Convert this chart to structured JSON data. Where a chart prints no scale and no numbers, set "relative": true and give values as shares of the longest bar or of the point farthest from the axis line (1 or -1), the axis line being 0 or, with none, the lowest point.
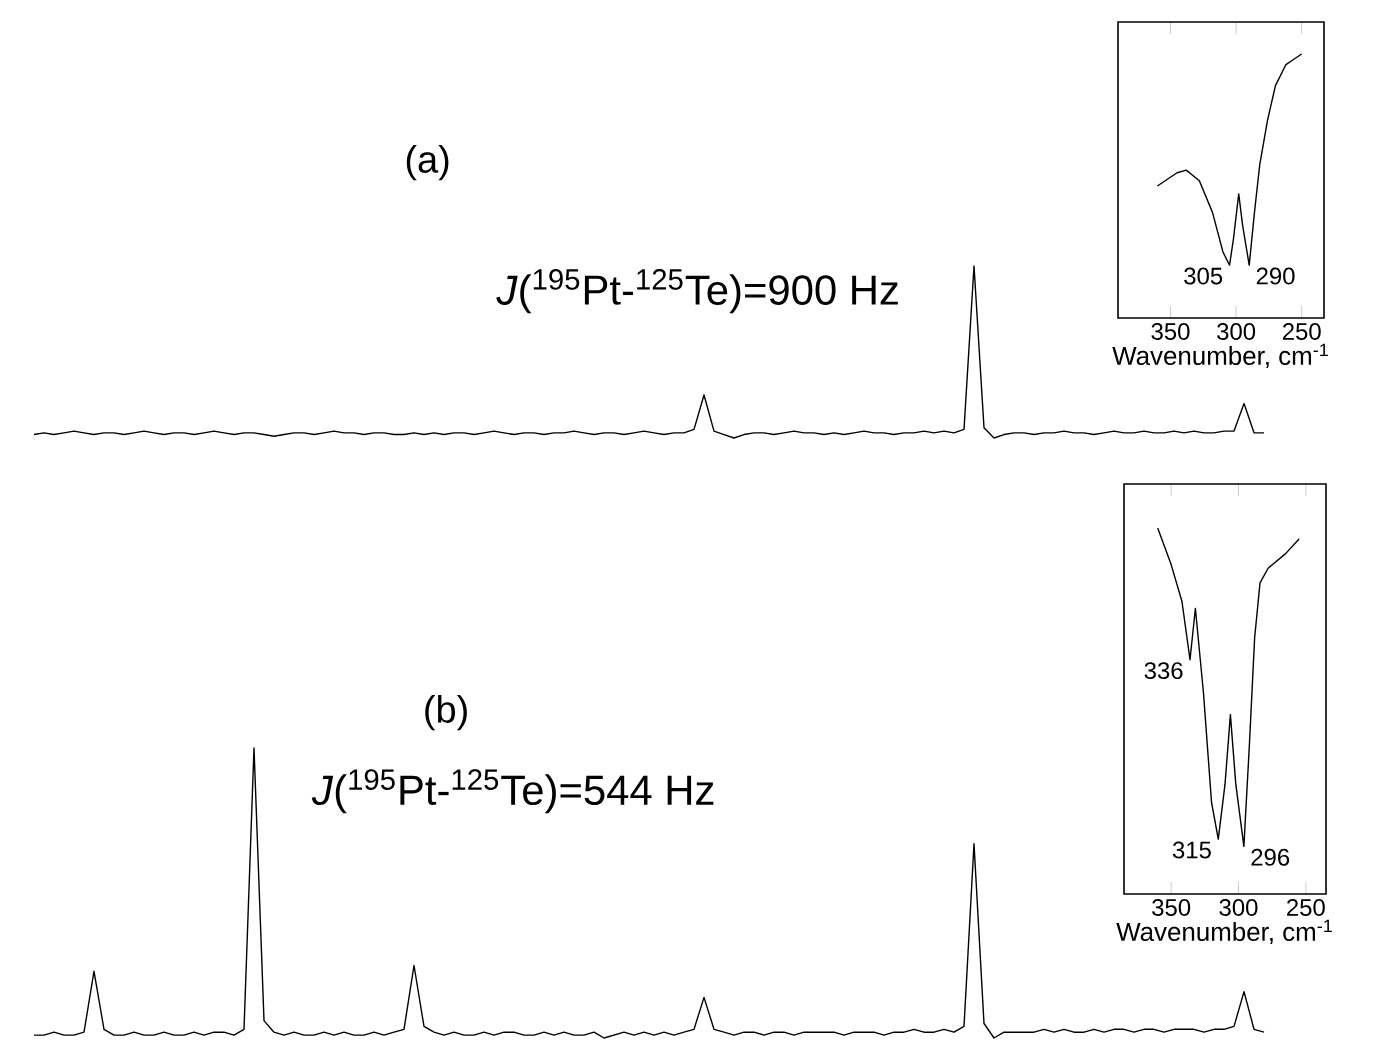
{
  "chart_data": [
    {
      "type": "line",
      "title": "(a)",
      "relative": true,
      "color": "#000000",
      "annotations": [
        "*J*($^{195}$Pt-$^{125}$Te)=900 Hz"
      ],
      "categories": [
        null,
        null,
        null,
        null,
        null,
        null,
        null,
        null,
        null,
        null,
        null,
        null,
        null,
        null,
        null,
        null,
        null,
        null,
        null,
        null,
        null,
        null,
        null,
        null,
        null,
        null,
        null,
        null,
        null,
        null,
        null,
        null,
        null,
        null,
        null,
        null,
        null,
        null,
        null,
        null,
        null,
        null,
        null,
        null,
        null,
        null,
        null,
        null,
        null,
        null,
        null,
        null,
        null,
        null,
        null,
        null,
        null,
        null,
        null,
        null,
        null,
        null,
        null,
        null,
        null,
        null,
        null,
        null,
        null,
        null,
        null,
        null,
        null,
        null,
        null,
        null,
        null,
        null,
        null,
        null,
        null,
        null,
        null,
        null,
        null,
        null,
        null,
        null,
        null,
        null,
        null,
        null,
        null,
        null,
        null,
        null,
        null,
        null,
        null,
        null,
        null,
        null,
        null,
        null,
        null,
        null,
        null,
        null,
        null,
        null,
        null,
        null,
        null,
        null,
        null,
        null,
        null,
        null,
        null,
        null,
        null,
        null,
        null,
        null
      ],
      "values": [
        0.02,
        0.03,
        0.02,
        0.03,
        0.04,
        0.03,
        0.02,
        0.03,
        0.03,
        0.02,
        0.03,
        0.04,
        0.03,
        0.02,
        0.03,
        0.03,
        0.02,
        0.03,
        0.04,
        0.03,
        0.02,
        0.03,
        0.03,
        0.02,
        0.01,
        0.02,
        0.03,
        0.03,
        0.02,
        0.03,
        0.04,
        0.03,
        0.03,
        0.02,
        0.03,
        0.03,
        0.02,
        0.02,
        0.03,
        0.02,
        0.03,
        0.02,
        0.03,
        0.03,
        0.02,
        0.03,
        0.04,
        0.03,
        0.02,
        0.03,
        0.03,
        0.02,
        0.03,
        0.03,
        0.04,
        0.03,
        0.02,
        0.03,
        0.03,
        0.02,
        0.03,
        0.04,
        0.03,
        0.02,
        0.03,
        0.03,
        0.05,
        0.25,
        0.04,
        0.02,
        0.0,
        0.02,
        0.03,
        0.03,
        0.02,
        0.03,
        0.04,
        0.03,
        0.03,
        0.02,
        0.03,
        0.02,
        0.03,
        0.04,
        0.03,
        0.03,
        0.02,
        0.03,
        0.03,
        0.04,
        0.03,
        0.04,
        0.03,
        0.05,
        1,
        0.06,
        0.0,
        0.02,
        0.03,
        0.03,
        0.02,
        0.03,
        0.03,
        0.04,
        0.03,
        0.03,
        0.02,
        0.03,
        0.04,
        0.03,
        0.03,
        0.04,
        0.03,
        0.03,
        0.04,
        0.03,
        0.04,
        0.03,
        0.03,
        0.04,
        0.04,
        0.2,
        0.03,
        0.03
      ]
    },
    {
      "type": "line",
      "relative": true,
      "color": "#000000",
      "xlabel": "Wavenumber, cm$^{-1}$",
      "xlim": [
        390,
        233
      ],
      "xticks": [
        350,
        300,
        250
      ],
      "annotations": [
        {
          "text": "305",
          "x": 305,
          "y": 0.2
        },
        {
          "text": "290",
          "x": 290,
          "y": 0.2
        }
      ],
      "x": [
        360,
        345,
        338,
        328,
        318,
        310,
        305,
        302,
        298,
        295,
        290,
        286,
        282,
        276,
        270,
        262,
        256,
        250
      ],
      "values": [
        0.5,
        0.55,
        0.56,
        0.52,
        0.4,
        0.25,
        0.2,
        0.3,
        0.47,
        0.35,
        0.2,
        0.4,
        0.58,
        0.75,
        0.88,
        0.96,
        0.98,
        1
      ]
    },
    {
      "type": "line",
      "title": "(b)",
      "relative": true,
      "color": "#000000",
      "annotations": [
        "*J*($^{195}$Pt-$^{125}$Te)=544 Hz"
      ],
      "categories": [
        null,
        null,
        null,
        null,
        null,
        null,
        null,
        null,
        null,
        null,
        null,
        null,
        null,
        null,
        null,
        null,
        null,
        null,
        null,
        null,
        null,
        null,
        null,
        null,
        null,
        null,
        null,
        null,
        null,
        null,
        null,
        null,
        null,
        null,
        null,
        null,
        null,
        null,
        null,
        null,
        null,
        null,
        null,
        null,
        null,
        null,
        null,
        null,
        null,
        null,
        null,
        null,
        null,
        null,
        null,
        null,
        null,
        null,
        null,
        null,
        null,
        null,
        null,
        null,
        null,
        null,
        null,
        null,
        null,
        null,
        null,
        null,
        null,
        null,
        null,
        null,
        null,
        null,
        null,
        null,
        null,
        null,
        null,
        null,
        null,
        null,
        null,
        null,
        null,
        null,
        null,
        null,
        null,
        null,
        null,
        null,
        null,
        null,
        null,
        null,
        null,
        null,
        null,
        null,
        null,
        null,
        null,
        null,
        null,
        null,
        null,
        null,
        null,
        null,
        null,
        null,
        null,
        null,
        null,
        null,
        null,
        null,
        null,
        null
      ],
      "values": [
        0.01,
        0.01,
        0.02,
        0.01,
        0.01,
        0.02,
        0.23,
        0.03,
        0.01,
        0.01,
        0.02,
        0.01,
        0.01,
        0.02,
        0.01,
        0.01,
        0.02,
        0.01,
        0.02,
        0.02,
        0.01,
        0.03,
        1,
        0.06,
        0.02,
        0.01,
        0.02,
        0.01,
        0.01,
        0.02,
        0.01,
        0.02,
        0.01,
        0.01,
        0.02,
        0.01,
        0.02,
        0.03,
        0.25,
        0.04,
        0.02,
        0.01,
        0.02,
        0.01,
        0.01,
        0.02,
        0.01,
        0.02,
        0.02,
        0.01,
        0.01,
        0.02,
        0.01,
        0.02,
        0.01,
        0.01,
        0.02,
        0.0,
        0.01,
        0.02,
        0.01,
        0.02,
        0.01,
        0.02,
        0.01,
        0.02,
        0.03,
        0.14,
        0.03,
        0.02,
        0.01,
        0.02,
        0.02,
        0.01,
        0.02,
        0.02,
        0.01,
        0.02,
        0.02,
        0.02,
        0.02,
        0.01,
        0.02,
        0.02,
        0.02,
        0.01,
        0.02,
        0.02,
        0.03,
        0.02,
        0.02,
        0.03,
        0.02,
        0.04,
        0.67,
        0.05,
        0.0,
        0.02,
        0.02,
        0.02,
        0.02,
        0.03,
        0.02,
        0.03,
        0.02,
        0.02,
        0.03,
        0.02,
        0.03,
        0.03,
        0.02,
        0.03,
        0.03,
        0.02,
        0.03,
        0.03,
        0.03,
        0.02,
        0.03,
        0.03,
        0.04,
        0.16,
        0.03,
        0.02
      ]
    },
    {
      "type": "line",
      "relative": true,
      "color": "#000000",
      "xlabel": "Wavenumber, cm$^{-1}$",
      "xlim": [
        385,
        235
      ],
      "xticks": [
        350,
        300,
        250
      ],
      "annotations": [
        {
          "text": "336",
          "x": 336,
          "y": 0.64
        },
        {
          "text": "315",
          "x": 315,
          "y": 0.15
        },
        {
          "text": "296",
          "x": 296,
          "y": 0.13
        }
      ],
      "x": [
        360,
        350,
        342,
        336,
        332,
        326,
        320,
        315,
        310,
        306,
        302,
        296,
        292,
        288,
        284,
        278,
        265,
        255
      ],
      "values": [
        1,
        0.9,
        0.8,
        0.64,
        0.78,
        0.55,
        0.25,
        0.15,
        0.3,
        0.49,
        0.3,
        0.13,
        0.4,
        0.7,
        0.85,
        0.89,
        0.93,
        0.97
      ]
    }
  ]
}
